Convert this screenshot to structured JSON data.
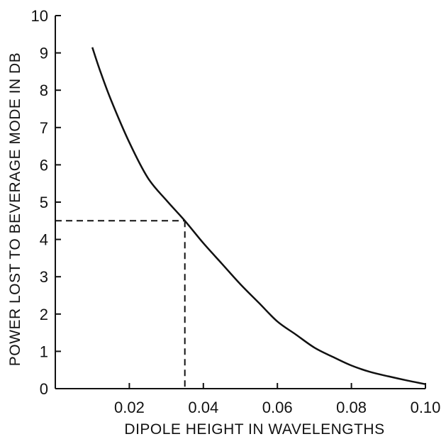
{
  "chart_data": {
    "type": "line",
    "title": "",
    "xlabel": "DIPOLE HEIGHT IN WAVELENGTHS",
    "ylabel": "POWER LOST TO BEVERAGE MODE IN DB",
    "xlim": [
      0,
      0.1
    ],
    "ylim": [
      0,
      10
    ],
    "x_ticks": [
      "0.02",
      "0.04",
      "0.06",
      "0.08",
      "0.10"
    ],
    "x_tick_values": [
      0.02,
      0.04,
      0.06,
      0.08,
      0.1
    ],
    "y_ticks": [
      "0",
      "1",
      "2",
      "3",
      "4",
      "5",
      "6",
      "7",
      "8",
      "9",
      "10"
    ],
    "y_tick_values": [
      0,
      1,
      2,
      3,
      4,
      5,
      6,
      7,
      8,
      9,
      10
    ],
    "grid": false,
    "series": [
      {
        "x": [
          0.01,
          0.012,
          0.015,
          0.02,
          0.025,
          0.03,
          0.035,
          0.04,
          0.045,
          0.05,
          0.055,
          0.06,
          0.065,
          0.07,
          0.075,
          0.08,
          0.085,
          0.09,
          0.095,
          0.1
        ],
        "y": [
          9.15,
          8.55,
          7.75,
          6.6,
          5.65,
          5.05,
          4.5,
          3.9,
          3.35,
          2.8,
          2.3,
          1.8,
          1.45,
          1.1,
          0.85,
          0.62,
          0.45,
          0.33,
          0.22,
          0.12
        ]
      }
    ],
    "reference_point": {
      "x": 0.035,
      "y": 4.5
    }
  }
}
